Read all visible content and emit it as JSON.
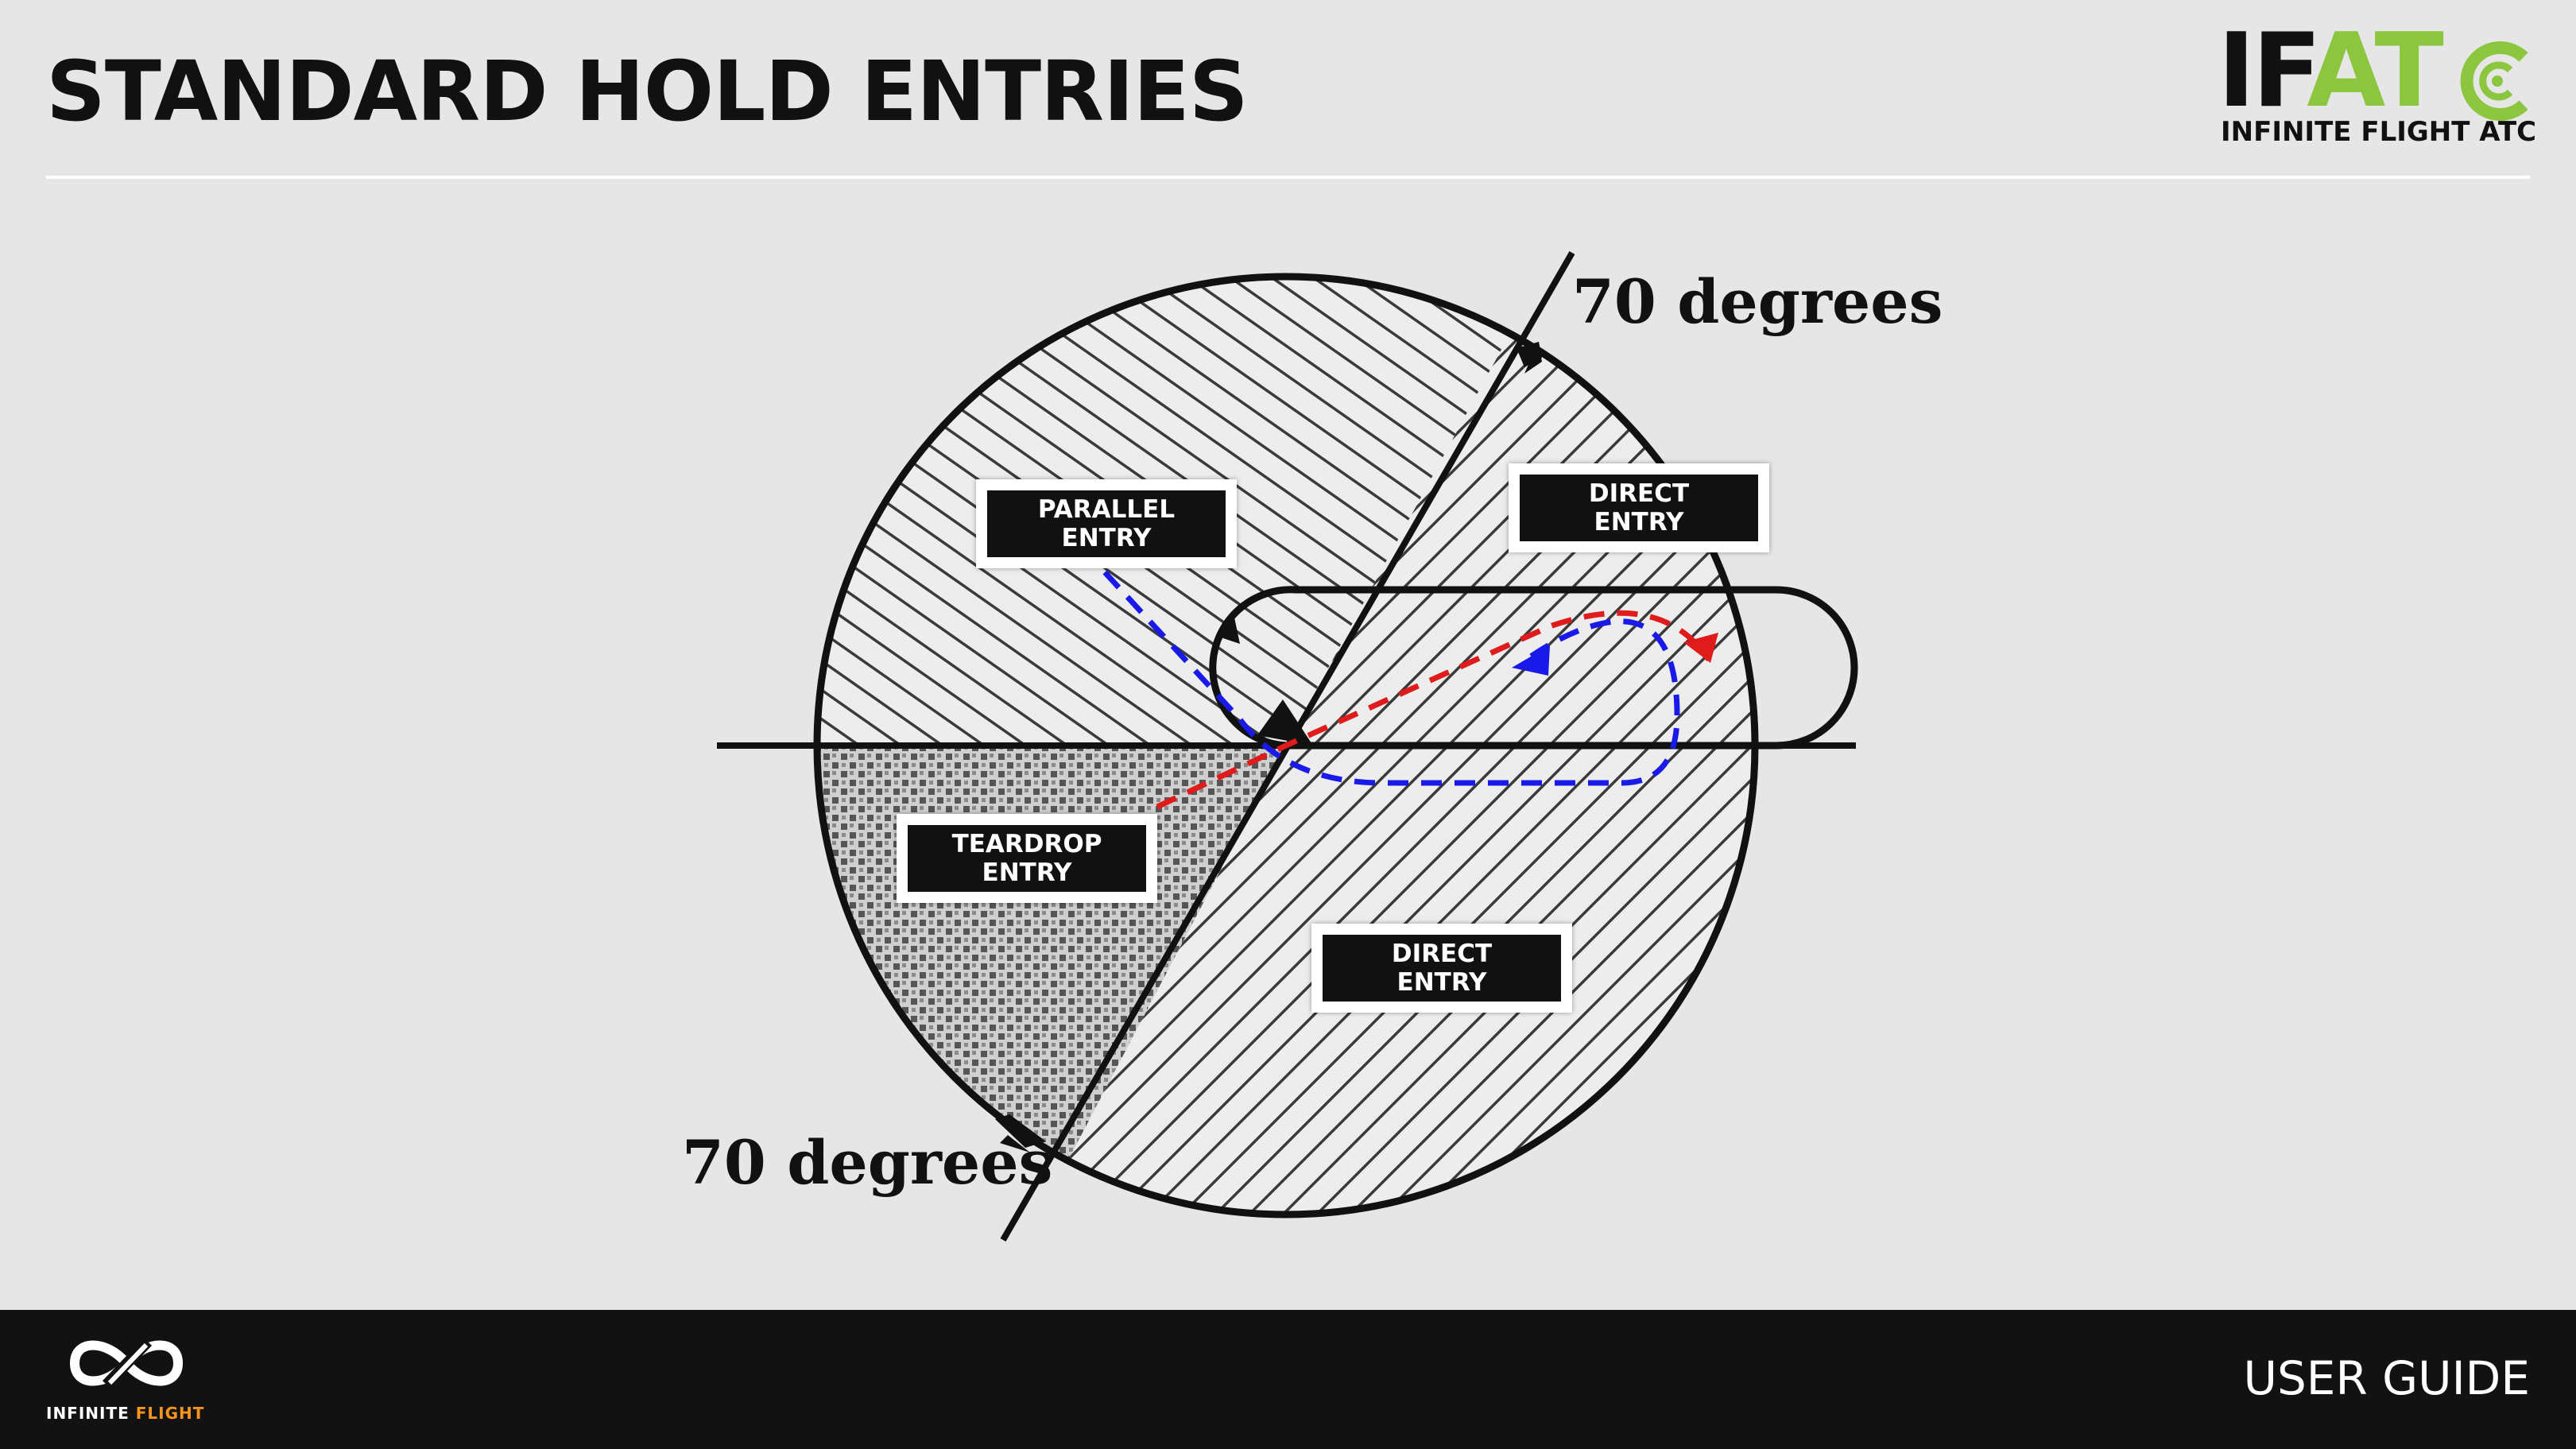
{
  "header": {
    "title": "STANDARD HOLD ENTRIES",
    "logo": {
      "word_dark": "IF",
      "word_green": "AT",
      "tagline": "INFINITE FLIGHT ATC",
      "icon": "atc-c-icon",
      "accent_color": "#8cc63f"
    }
  },
  "diagram": {
    "labels": {
      "parallel": [
        "PARALLEL",
        "ENTRY"
      ],
      "direct_top": [
        "DIRECT",
        "ENTRY"
      ],
      "teardrop": [
        "TEARDROP",
        "ENTRY"
      ],
      "direct_bottom": [
        "DIRECT",
        "ENTRY"
      ]
    },
    "angle_top": "70 degrees",
    "angle_bottom": "70 degrees",
    "path_colors": {
      "red": "#e01b1b",
      "blue": "#1a1ae8"
    }
  },
  "footer": {
    "brand_white": "INFINITE ",
    "brand_orange": "FLIGHT",
    "brand_orange_color": "#f7941d",
    "right_label": "USER GUIDE",
    "icon": "infinite-flight-logo-icon"
  }
}
